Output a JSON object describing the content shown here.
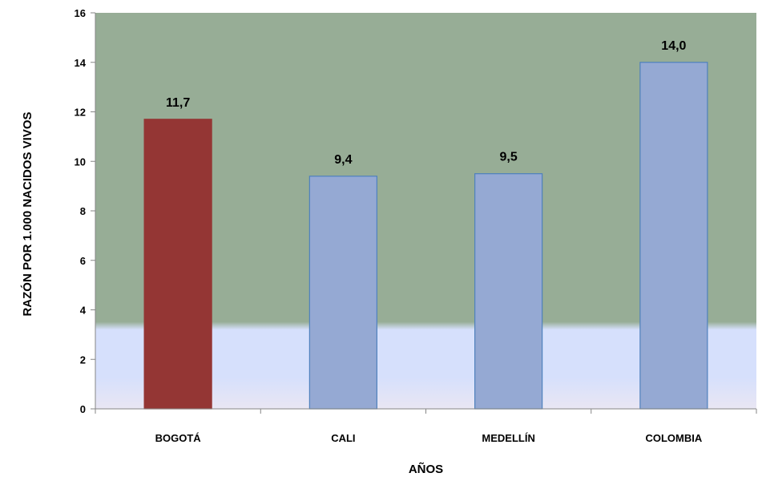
{
  "chart_data": {
    "type": "bar",
    "title": "",
    "xlabel": "AÑOS",
    "ylabel": "RAZÓN  POR 1.000 NACIDOS VIVOS",
    "categories": [
      "BOGOTÁ",
      "CALI",
      "MEDELLÍN",
      "COLOMBIA"
    ],
    "values": [
      11.7,
      9.4,
      9.5,
      14.0
    ],
    "value_labels": [
      "11,7",
      "9,4",
      "9,5",
      "14,0"
    ],
    "ylim": [
      0,
      16
    ],
    "yticks": [
      0,
      2,
      4,
      6,
      8,
      10,
      12,
      14,
      16
    ],
    "grid": false,
    "legend": "none",
    "colors": {
      "highlight_bar": "#943634",
      "bar": "#95A9D3",
      "bar_border": "#4F81BD",
      "plot_bg_top": "#97AD96",
      "plot_bg_band": "#D6E0FC",
      "plot_bg_bottom": "#E9E6F3"
    },
    "highlight_index": 0
  }
}
